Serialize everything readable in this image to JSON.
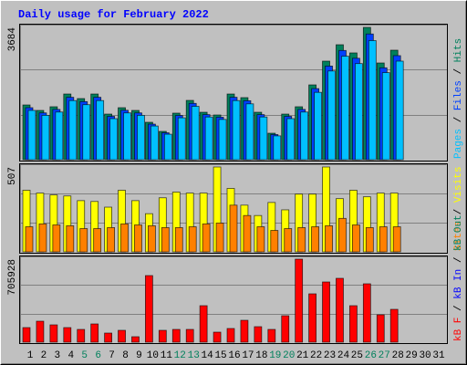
{
  "title": "Daily usage for February 2022",
  "categories": [
    "1",
    "2",
    "3",
    "4",
    "5",
    "6",
    "7",
    "8",
    "9",
    "10",
    "11",
    "12",
    "13",
    "14",
    "15",
    "16",
    "17",
    "18",
    "19",
    "20",
    "21",
    "22",
    "23",
    "24",
    "25",
    "26",
    "27",
    "28",
    "29",
    "30",
    "31"
  ],
  "category_colors": [
    "#000",
    "#000",
    "#000",
    "#000",
    "#00805c",
    "#00805c",
    "#000",
    "#000",
    "#000",
    "#000",
    "#000",
    "#00805c",
    "#00805c",
    "#000",
    "#000",
    "#000",
    "#000",
    "#000",
    "#00805c",
    "#00805c",
    "#000",
    "#000",
    "#000",
    "#000",
    "#000",
    "#00805c",
    "#00805c",
    "#000",
    "#000",
    "#000",
    "#000"
  ],
  "legend_separator": " / ",
  "chart_data": [
    {
      "type": "bar",
      "ylim": [
        0,
        3684
      ],
      "yticks": [
        3684
      ],
      "grid": true,
      "series": [
        {
          "name": "Pages",
          "color": "#00c0ff",
          "values": [
            1372,
            1235,
            1327,
            1646,
            1532,
            1646,
            1143,
            1303,
            1235,
            938,
            709,
            1166,
            1486,
            1189,
            1121,
            1646,
            1555,
            1189,
            663,
            1143,
            1327,
            1875,
            2470,
            2881,
            2676,
            3316,
            2424,
            2744,
            null,
            null,
            null
          ]
        },
        {
          "name": "Files",
          "color": "#0040ff",
          "values": [
            1448,
            1303,
            1400,
            1738,
            1617,
            1738,
            1207,
            1376,
            1303,
            990,
            749,
            1231,
            1568,
            1255,
            1183,
            1738,
            1642,
            1255,
            700,
            1207,
            1400,
            1979,
            2607,
            3041,
            2824,
            3500,
            2558,
            2897,
            null,
            null,
            null
          ]
        },
        {
          "name": "Hits",
          "color": "#00805c",
          "values": [
            1524,
            1372,
            1474,
            1829,
            1702,
            1829,
            1270,
            1448,
            1372,
            1042,
            788,
            1296,
            1651,
            1321,
            1245,
            1829,
            1728,
            1321,
            737,
            1270,
            1474,
            2083,
            2744,
            3201,
            2973,
            3684,
            2693,
            3049,
            null,
            null,
            null
          ]
        }
      ]
    },
    {
      "type": "bar",
      "ylim": [
        0,
        507
      ],
      "yticks": [
        507
      ],
      "grid": true,
      "series": [
        {
          "name": "Sites",
          "color": "#ff8000",
          "values": [
            150,
            167,
            161,
            156,
            139,
            139,
            145,
            167,
            161,
            156,
            145,
            145,
            150,
            167,
            172,
            279,
            217,
            150,
            128,
            139,
            145,
            150,
            156,
            200,
            161,
            145,
            150,
            150,
            null,
            null,
            null
          ]
        },
        {
          "name": "Visits",
          "color": "#ffff00",
          "values": [
            368,
            351,
            340,
            334,
            306,
            301,
            267,
            368,
            306,
            228,
            323,
            357,
            351,
            351,
            507,
            379,
            279,
            217,
            295,
            251,
            345,
            345,
            507,
            318,
            368,
            329,
            351,
            351,
            null,
            null,
            null
          ]
        }
      ]
    },
    {
      "type": "bar",
      "ylim": [
        0,
        705928
      ],
      "yticks": [
        705928
      ],
      "grid": true,
      "series": [
        {
          "name": "kB F",
          "color": "#ff0000",
          "values": [
            124119,
            178422,
            147391,
            124119,
            108603,
            155149,
            77574,
            100848,
            46545,
            566290,
            100848,
            108603,
            108603,
            310298,
            85332,
            116362,
            186179,
            131876,
            108603,
            224966,
            705928,
            411145,
            511991,
            543022,
            310298,
            496476,
            232723,
            279270,
            null,
            null,
            null
          ]
        },
        {
          "name": "kB In",
          "color": "#0000ff",
          "values": [
            0,
            0,
            0,
            0,
            0,
            0,
            0,
            0,
            0,
            0,
            0,
            0,
            0,
            0,
            0,
            0,
            0,
            0,
            0,
            0,
            0,
            0,
            0,
            0,
            0,
            0,
            0,
            0,
            null,
            null,
            null
          ]
        },
        {
          "name": "kB Out",
          "color": "#00805c",
          "values": [
            0,
            0,
            0,
            0,
            0,
            0,
            0,
            0,
            0,
            0,
            0,
            0,
            0,
            0,
            0,
            0,
            0,
            0,
            0,
            0,
            0,
            0,
            0,
            0,
            0,
            0,
            0,
            0,
            null,
            null,
            null
          ]
        }
      ]
    }
  ]
}
